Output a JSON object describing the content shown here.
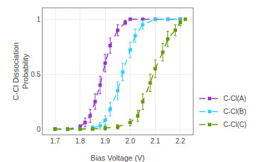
{
  "chart_data": {
    "type": "line",
    "xlabel": "Bias Voltage (V)",
    "ylabel": "C-Cl Dissociation\nProbability",
    "xlim": [
      1.65,
      2.25
    ],
    "ylim": [
      -0.05,
      1.1
    ],
    "xticks": [
      1.7,
      1.8,
      1.9,
      {
        "value": 2.0,
        "label": "2.0"
      },
      2.1,
      2.2
    ],
    "yticks": [
      0,
      0.5,
      1
    ],
    "grid": true,
    "legend": "lower right",
    "series": [
      {
        "name": "C-Cl(A)",
        "color": "#9933CC",
        "line_style": "dashed",
        "marker": "square",
        "x": [
          1.7,
          1.75,
          1.8,
          1.82,
          1.84,
          1.86,
          1.88,
          1.9,
          1.92,
          1.95,
          1.98,
          2.0,
          2.05,
          2.1,
          2.15,
          2.2
        ],
        "values": [
          0.0,
          0.0,
          0.02,
          0.06,
          0.12,
          0.25,
          0.4,
          0.6,
          0.76,
          0.9,
          0.97,
          1.0,
          1.0,
          1.0,
          1.0,
          1.0
        ],
        "yerr": [
          0.01,
          0.01,
          0.02,
          0.04,
          0.06,
          0.07,
          0.08,
          0.08,
          0.07,
          0.05,
          0.02,
          0.01,
          0.0,
          0.0,
          0.0,
          0.0
        ]
      },
      {
        "name": "C-Cl(B)",
        "color": "#33CCFF",
        "line_style": "dashed",
        "marker": "square",
        "x": [
          1.7,
          1.75,
          1.8,
          1.85,
          1.88,
          1.9,
          1.92,
          1.95,
          1.97,
          2.0,
          2.02,
          2.05,
          2.1,
          2.15,
          2.2
        ],
        "values": [
          0.0,
          0.0,
          0.0,
          0.01,
          0.03,
          0.08,
          0.18,
          0.35,
          0.52,
          0.72,
          0.85,
          0.95,
          1.0,
          1.0,
          1.0
        ],
        "yerr": [
          0.01,
          0.01,
          0.01,
          0.02,
          0.03,
          0.04,
          0.06,
          0.08,
          0.08,
          0.07,
          0.06,
          0.04,
          0.01,
          0.0,
          0.0
        ]
      },
      {
        "name": "C-Cl(C)",
        "color": "#669900",
        "line_style": "dashed",
        "marker": "square",
        "x": [
          1.7,
          1.75,
          1.8,
          1.85,
          1.9,
          1.95,
          2.0,
          2.03,
          2.05,
          2.08,
          2.1,
          2.13,
          2.15,
          2.18,
          2.2,
          2.22
        ],
        "values": [
          0.0,
          0.0,
          0.0,
          0.0,
          0.01,
          0.02,
          0.06,
          0.12,
          0.25,
          0.42,
          0.55,
          0.7,
          0.82,
          0.9,
          0.97,
          1.0
        ],
        "yerr": [
          0.01,
          0.01,
          0.01,
          0.01,
          0.02,
          0.02,
          0.03,
          0.05,
          0.07,
          0.08,
          0.08,
          0.08,
          0.07,
          0.05,
          0.03,
          0.01
        ]
      }
    ]
  }
}
